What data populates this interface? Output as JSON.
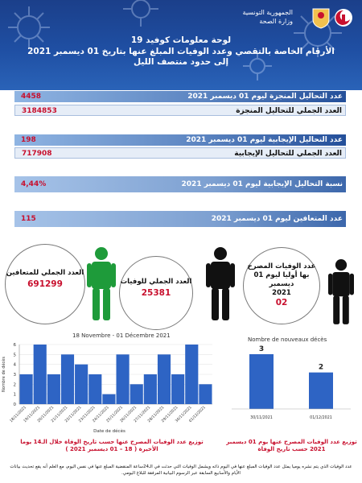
{
  "header": {
    "gov_line1": "الجمهورية التونسية",
    "gov_line2": "وزارة الصحة",
    "title_line1": "لوحة معلومات كوفيد 19",
    "title_line2": "الأرقام الخاصة بالتقصي وعدد الوفيات المبلغ عنها بتاريخ 01 ديسمبر 2021",
    "title_line3": "إلى حدود منتصف الليل"
  },
  "stats": {
    "tests_day_label": "عدد التحاليل المنجزة ليوم 01 ديسمبر 2021",
    "tests_day_value": "4458",
    "tests_total_label": "العدد الجملي للتحاليل المنجزة",
    "tests_total_value": "3184853",
    "positive_day_label": "عدد التحاليل الإيجابية ليوم 01 ديسمبر 2021",
    "positive_day_value": "198",
    "positive_total_label": "العدد الجملي للتحاليل الإيجابية",
    "positive_total_value": "717908",
    "positivity_label": "نسبة التحاليل الإيجابية ليوم 01 ديسمبر 2021",
    "positivity_value": "4,44%",
    "recovered_day_label": "عدد المتعافين ليوم 01 ديسمبر 2021",
    "recovered_day_value": "115"
  },
  "circles": {
    "recovered_total_label": "العدد الجملي للمتعافين",
    "recovered_total_value": "691299",
    "deaths_total_label": "العدد الجملي للوفيات",
    "deaths_total_value": "25381",
    "deaths_day_line1": "عدد الوفيات المصرح",
    "deaths_day_line2": "بها أوليا ليوم 01",
    "deaths_day_line3": "ديسمبر",
    "deaths_day_line4": "2021",
    "deaths_day_value": "02"
  },
  "colors": {
    "green_person": "#1e9b3a",
    "black_person": "#111111",
    "bar_blue": "#2e64c4",
    "value_red": "#c8102e"
  },
  "chart_data": [
    {
      "type": "bar",
      "title": "18 Novembre - 01 Décembre 2021",
      "xlabel": "Date de décès",
      "ylabel": "Nombre de décès",
      "ylim": [
        0,
        6
      ],
      "yticks": [
        "0",
        "1",
        "2",
        "3",
        "4",
        "5",
        "6"
      ],
      "categories": [
        "18/11/2021",
        "19/11/2021",
        "20/11/2021",
        "21/11/2021",
        "22/11/2021",
        "23/11/2021",
        "24/11/2021",
        "25/11/2021",
        "26/11/2021",
        "27/11/2021",
        "28/11/2021",
        "29/11/2021",
        "30/11/2021",
        "01/12/2021"
      ],
      "values": [
        3,
        6,
        3,
        5,
        4,
        3,
        1,
        5,
        2,
        3,
        5,
        3,
        6,
        2
      ]
    },
    {
      "type": "bar",
      "title": "Nombre de nouveaux décès",
      "categories": [
        "30/11/2021",
        "01/12/2021"
      ],
      "values": [
        3,
        2
      ]
    }
  ],
  "captions": {
    "left": "توزيع عدد الوفيات المصرح عنها حسب تاريخ الوفاة خلال الـ14 يوما الأخيرة ( 18 – 01 ديسمبر 2021 )",
    "right": "توزيع عدد الوفيات المصرح عنها يوم 01 ديسمبر 2021 حسب تاريخ الوفاة"
  },
  "footer": "عدد الوفيات الذي يتم نشره يوميا يمثل عدد الوفيات المبلغ عنها في اليوم ذاته ويشمل الوفيات التي حدثت في الـ24ساعة المنقضية المبلغ عنها في نفس اليوم، مع العلم أنه يقع تحديث بيانات الأيام والأسابيع السابقة عبر الرسوم البيانية المرفقة للبلاغ اليومي."
}
